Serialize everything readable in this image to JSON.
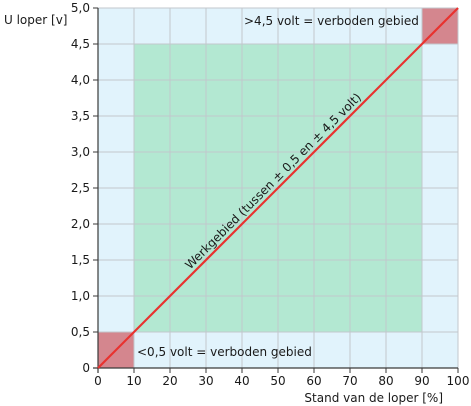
{
  "chart_data": {
    "type": "line",
    "xlabel": "Stand van de loper [%]",
    "ylabel": "U loper [v]",
    "xlim": [
      0,
      100
    ],
    "ylim": [
      0,
      5.0
    ],
    "x_ticks": [
      0,
      10,
      20,
      30,
      40,
      50,
      60,
      70,
      80,
      90,
      100
    ],
    "x_tick_labels": [
      "0",
      "10",
      "20",
      "30",
      "40",
      "50",
      "60",
      "70",
      "80",
      "90",
      "100"
    ],
    "y_ticks": [
      0,
      0.5,
      1.0,
      1.5,
      2.0,
      2.5,
      3.0,
      3.5,
      4.0,
      4.5,
      5.0
    ],
    "y_tick_labels": [
      "0",
      "0,5",
      "1,0",
      "1,5",
      "2,0",
      "2,5",
      "3,0",
      "3,5",
      "4,0",
      "4,5",
      "5,0"
    ],
    "grid": true,
    "series": [
      {
        "x": [
          0,
          100
        ],
        "y": [
          0,
          5.0
        ]
      }
    ],
    "regions": [
      {
        "x": [
          10,
          90
        ],
        "y": [
          0.5,
          4.5
        ],
        "kind": "work"
      },
      {
        "x": [
          0,
          10
        ],
        "y": [
          0,
          0.5
        ],
        "kind": "forbidden"
      },
      {
        "x": [
          90,
          100
        ],
        "y": [
          4.5,
          5.0
        ],
        "kind": "forbidden"
      }
    ],
    "annotations": {
      "top": ">4,5 volt = verboden gebied",
      "bottom": "<0,5 volt = verboden gebied",
      "diagonal": "Werkgebied (tussen ± 0,5 en ± 4,5 volt)"
    },
    "colors": {
      "background": "#e1f3fc",
      "work_area": "#b3e8d2",
      "forbidden": "#d4868e",
      "line": "#e8322f",
      "grid": "#c2c7cc",
      "axis": "#3a3a3a"
    }
  }
}
